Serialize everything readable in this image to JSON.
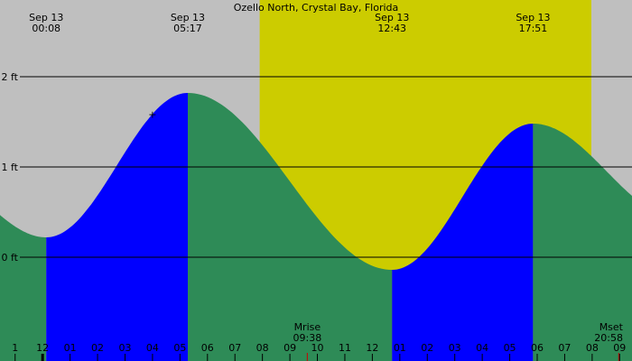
{
  "chart_data": {
    "type": "area",
    "title": "Ozello North, Crystal Bay, Florida",
    "x_unit": "hours after midnight, Sep 13",
    "y_unit": "ft",
    "xlim": [
      -1.55,
      21.45
    ],
    "ylim": [
      -1.15,
      2.85
    ],
    "y_ticks": [
      {
        "value": 2,
        "label": "2 ft"
      },
      {
        "value": 1,
        "label": "1 ft"
      },
      {
        "value": 0,
        "label": "0 ft"
      }
    ],
    "x_ticks": [
      {
        "value": -1,
        "label": "1"
      },
      {
        "value": 0,
        "label": "12"
      },
      {
        "value": 1,
        "label": "01"
      },
      {
        "value": 2,
        "label": "02"
      },
      {
        "value": 3,
        "label": "03"
      },
      {
        "value": 4,
        "label": "04"
      },
      {
        "value": 5,
        "label": "05"
      },
      {
        "value": 6,
        "label": "06"
      },
      {
        "value": 7,
        "label": "07"
      },
      {
        "value": 8,
        "label": "08"
      },
      {
        "value": 9,
        "label": "09"
      },
      {
        "value": 10,
        "label": "10"
      },
      {
        "value": 11,
        "label": "11"
      },
      {
        "value": 12,
        "label": "12"
      },
      {
        "value": 13,
        "label": "01"
      },
      {
        "value": 14,
        "label": "02"
      },
      {
        "value": 15,
        "label": "03"
      },
      {
        "value": 16,
        "label": "04"
      },
      {
        "value": 17,
        "label": "05"
      },
      {
        "value": 18,
        "label": "06"
      },
      {
        "value": 19,
        "label": "07"
      },
      {
        "value": 20,
        "label": "08"
      },
      {
        "value": 21,
        "label": "09"
      }
    ],
    "tide_extremes": [
      {
        "hour": 0.133,
        "height": 0.22,
        "type": "low",
        "date": "Sep 13",
        "time": "00:08"
      },
      {
        "hour": 5.283,
        "height": 1.82,
        "type": "high",
        "date": "Sep 13",
        "time": "05:17"
      },
      {
        "hour": 12.717,
        "height": -0.14,
        "type": "low",
        "date": "Sep 13",
        "time": "12:43"
      },
      {
        "hour": 17.85,
        "height": 1.48,
        "type": "high",
        "date": "Sep 13",
        "time": "17:51"
      }
    ],
    "series_start": {
      "hour": -1.55,
      "height": 0.3
    },
    "series_end": {
      "hour": 21.45,
      "height": 0.68
    },
    "daylight": {
      "start": 7.9,
      "end": 19.97
    },
    "moon_events": [
      {
        "label": "Mrise",
        "time": "09:38",
        "hour": 9.633
      },
      {
        "label": "Mset",
        "time": "20:58",
        "hour": 20.967
      }
    ],
    "current_time_hour": 4.0,
    "colors": {
      "background": "#bfbfbf",
      "daylight": "#cccc00",
      "rising_tide": "#0000ff",
      "falling_tide": "#2e8b57",
      "grid": "#000000",
      "moon_tick": "#cc0000"
    }
  }
}
